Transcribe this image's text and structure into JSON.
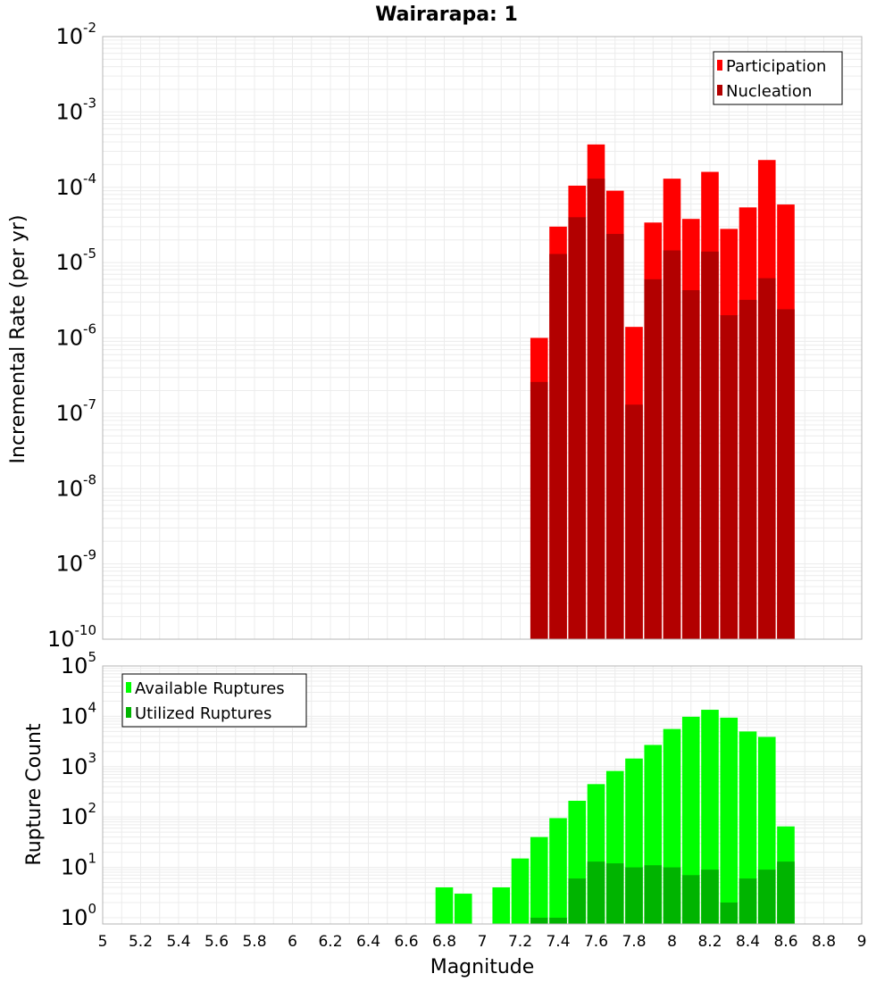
{
  "chart_data": [
    {
      "type": "bar",
      "title": "Wairarapa: 1",
      "xlabel": "",
      "ylabel": "Incremental Rate (per yr)",
      "yscale": "log",
      "xlim": [
        5,
        9
      ],
      "ylim": [
        1e-10,
        0.01
      ],
      "grid": true,
      "legend_position": "top-right",
      "x": [
        7.3,
        7.4,
        7.5,
        7.6,
        7.7,
        7.8,
        7.9,
        8.0,
        8.1,
        8.2,
        8.3,
        8.4,
        8.5,
        8.6
      ],
      "series": [
        {
          "name": "Participation",
          "color": "#ff0000",
          "values": [
            1e-06,
            3e-05,
            0.000105,
            0.00037,
            9e-05,
            1.4e-06,
            3.4e-05,
            0.00013,
            3.8e-05,
            0.00016,
            2.8e-05,
            5.4e-05,
            0.00023,
            5.9e-05
          ]
        },
        {
          "name": "Nucleation",
          "color": "#b20000",
          "values": [
            2.6e-07,
            1.3e-05,
            4e-05,
            0.00013,
            2.4e-05,
            1.3e-07,
            6e-06,
            1.45e-05,
            4.3e-06,
            1.4e-05,
            2e-06,
            3.2e-06,
            6.2e-06,
            2.4e-06
          ]
        }
      ]
    },
    {
      "type": "bar",
      "xlabel": "Magnitude",
      "ylabel": "Rupture Count",
      "yscale": "log",
      "xlim": [
        5,
        9
      ],
      "ylim": [
        0.75,
        100000
      ],
      "grid": true,
      "legend_position": "top-left",
      "series": [
        {
          "name": "Available Ruptures",
          "color": "#00ff00",
          "x": [
            6.8,
            6.9,
            7.1,
            7.2,
            7.3,
            7.4,
            7.5,
            7.6,
            7.7,
            7.8,
            7.9,
            8.0,
            8.1,
            8.2,
            8.3,
            8.4,
            8.5,
            8.6
          ],
          "values": [
            4,
            3,
            4,
            15,
            40,
            95,
            210,
            450,
            820,
            1450,
            2700,
            5600,
            9800,
            13500,
            9400,
            5000,
            3900,
            65
          ]
        },
        {
          "name": "Utilized Ruptures",
          "color": "#00b400",
          "x": [
            7.3,
            7.4,
            7.5,
            7.6,
            7.7,
            7.8,
            7.9,
            8.0,
            8.1,
            8.2,
            8.3,
            8.4,
            8.5,
            8.6
          ],
          "values": [
            1,
            1,
            6,
            13,
            12,
            10,
            11,
            10,
            7,
            9,
            2,
            6,
            9,
            13
          ]
        }
      ]
    }
  ],
  "x_ticks": [
    "5",
    "5.2",
    "5.4",
    "5.6",
    "5.8",
    "6",
    "6.2",
    "6.4",
    "6.6",
    "6.8",
    "7",
    "7.2",
    "7.4",
    "7.6",
    "7.8",
    "8",
    "8.2",
    "8.4",
    "8.6",
    "8.8",
    "9"
  ],
  "top_y_ticks": [
    {
      "mant": "10",
      "exp": "-10",
      "v": -10
    },
    {
      "mant": "10",
      "exp": "-9",
      "v": -9
    },
    {
      "mant": "10",
      "exp": "-8",
      "v": -8
    },
    {
      "mant": "10",
      "exp": "-7",
      "v": -7
    },
    {
      "mant": "10",
      "exp": "-6",
      "v": -6
    },
    {
      "mant": "10",
      "exp": "-5",
      "v": -5
    },
    {
      "mant": "10",
      "exp": "-4",
      "v": -4
    },
    {
      "mant": "10",
      "exp": "-3",
      "v": -3
    },
    {
      "mant": "10",
      "exp": "-2",
      "v": -2
    }
  ],
  "bottom_y_ticks": [
    {
      "mant": "10",
      "exp": "0",
      "v": 0
    },
    {
      "mant": "10",
      "exp": "1",
      "v": 1
    },
    {
      "mant": "10",
      "exp": "2",
      "v": 2
    },
    {
      "mant": "10",
      "exp": "3",
      "v": 3
    },
    {
      "mant": "10",
      "exp": "4",
      "v": 4
    },
    {
      "mant": "10",
      "exp": "5",
      "v": 5
    }
  ]
}
